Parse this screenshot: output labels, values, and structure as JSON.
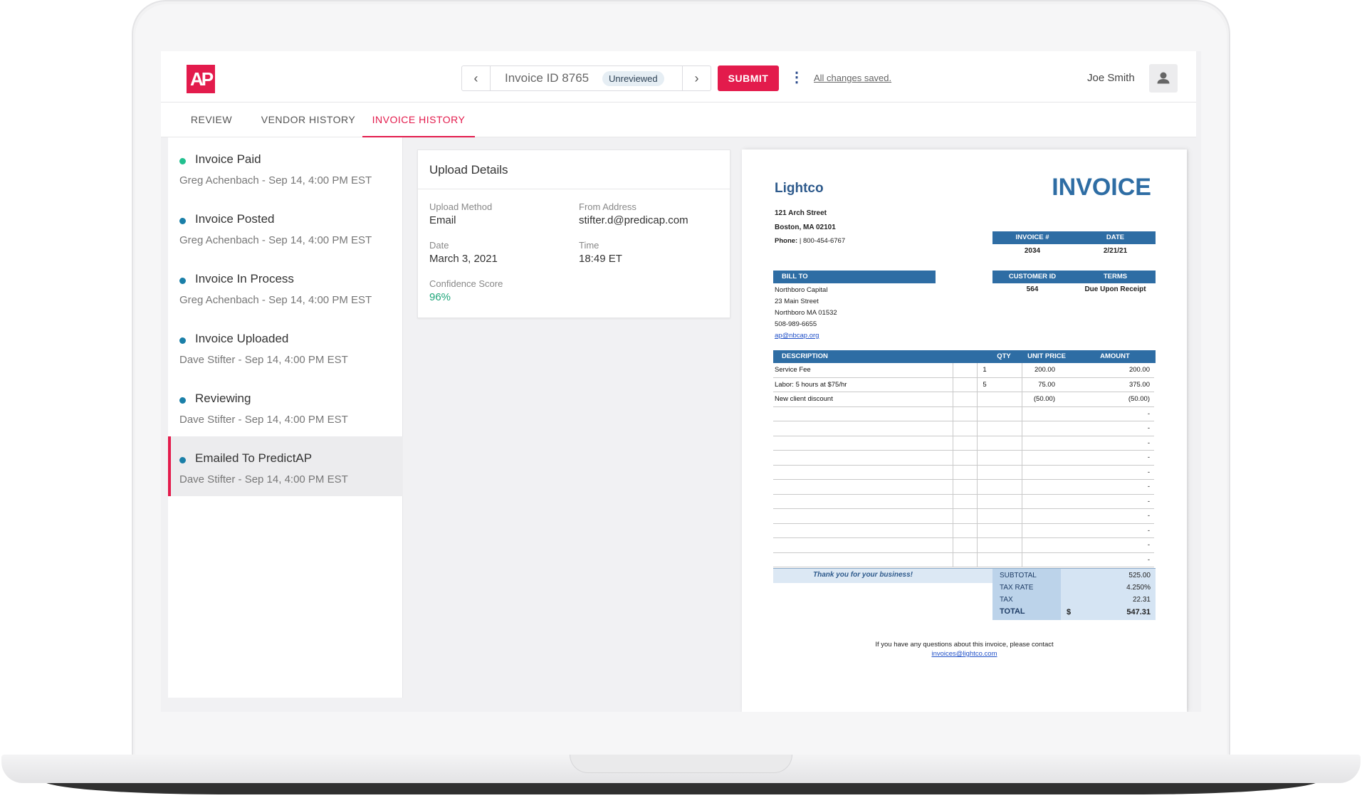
{
  "header": {
    "invoice_id": "Invoice ID 8765",
    "status": "Unreviewed",
    "submit_label": "SUBMIT",
    "saved_text": "All changes saved.",
    "user_name": "Joe Smith"
  },
  "tabs": [
    {
      "label": "REVIEW"
    },
    {
      "label": "VENDOR HISTORY"
    },
    {
      "label": "INVOICE HISTORY",
      "active": true
    }
  ],
  "timeline": [
    {
      "title": "Invoice Paid",
      "meta": "Greg Achenbach  -  Sep 14, 4:00 PM EST",
      "dot": "#22c08f"
    },
    {
      "title": "Invoice Posted",
      "meta": "Greg Achenbach  -  Sep 14, 4:00 PM EST",
      "dot": "#1a7fa8"
    },
    {
      "title": "Invoice In Process",
      "meta": "Greg Achenbach  -  Sep 14, 4:00 PM EST",
      "dot": "#1a7fa8"
    },
    {
      "title": "Invoice Uploaded",
      "meta": "Dave Stifter  -  Sep 14, 4:00 PM EST",
      "dot": "#1a7fa8"
    },
    {
      "title": "Reviewing",
      "meta": "Dave Stifter  -  Sep 14, 4:00 PM EST",
      "dot": "#1a7fa8"
    },
    {
      "title": "Emailed To PredictAP",
      "meta": "Dave Stifter  -  Sep 14, 4:00 PM EST",
      "dot": "#1a7fa8",
      "selected": true
    }
  ],
  "upload": {
    "title": "Upload Details",
    "method_label": "Upload Method",
    "method": "Email",
    "from_label": "From Address",
    "from": "stifter.d@predicap.com",
    "date_label": "Date",
    "date": "March 3, 2021",
    "time_label": "Time",
    "time": "18:49 ET",
    "confidence_label": "Confidence Score",
    "confidence": "96%",
    "confidence_color": "#1fa67a"
  },
  "invoice": {
    "company": "Lightco",
    "heading": "INVOICE",
    "address1": "121 Arch Street",
    "address2": "Boston, MA 02101",
    "phone_label": "Phone:",
    "phone": "| 800-454-6767",
    "invoice_no_label": "INVOICE #",
    "date_label": "DATE",
    "invoice_no": "2034",
    "date": "2/21/21",
    "bill_to_label": "BILL TO",
    "bill_to": [
      "Northboro Capital",
      "23 Main Street",
      "Northboro MA 01532",
      "508-989-6655"
    ],
    "bill_email": "ap@nbcap.org",
    "customer_id_label": "CUSTOMER ID",
    "terms_label": "TERMS",
    "customer_id": "564",
    "terms": "Due Upon Receipt",
    "columns": [
      "DESCRIPTION",
      "QTY",
      "UNIT PRICE",
      "AMOUNT"
    ],
    "rows": [
      {
        "desc": "Service Fee",
        "qty": "1",
        "unit": "200.00",
        "amount": "200.00"
      },
      {
        "desc": "Labor: 5 hours at $75/hr",
        "qty": "5",
        "unit": "75.00",
        "amount": "375.00"
      },
      {
        "desc": "New client discount",
        "qty": "",
        "unit": "(50.00)",
        "amount": "(50.00)"
      },
      {
        "desc": "",
        "qty": "",
        "unit": "",
        "amount": "-"
      },
      {
        "desc": "",
        "qty": "",
        "unit": "",
        "amount": "-"
      },
      {
        "desc": "",
        "qty": "",
        "unit": "",
        "amount": "-"
      },
      {
        "desc": "",
        "qty": "",
        "unit": "",
        "amount": "-"
      },
      {
        "desc": "",
        "qty": "",
        "unit": "",
        "amount": "-"
      },
      {
        "desc": "",
        "qty": "",
        "unit": "",
        "amount": "-"
      },
      {
        "desc": "",
        "qty": "",
        "unit": "",
        "amount": "-"
      },
      {
        "desc": "",
        "qty": "",
        "unit": "",
        "amount": "-"
      },
      {
        "desc": "",
        "qty": "",
        "unit": "",
        "amount": "-"
      },
      {
        "desc": "",
        "qty": "",
        "unit": "",
        "amount": "-"
      },
      {
        "desc": "",
        "qty": "",
        "unit": "",
        "amount": "-"
      }
    ],
    "thanks": "Thank you for your business!",
    "subtotal_label": "SUBTOTAL",
    "subtotal": "525.00",
    "tax_rate_label": "TAX RATE",
    "tax_rate": "4.250%",
    "tax_label": "TAX",
    "tax": "22.31",
    "total_label": "TOTAL",
    "currency": "$",
    "total": "547.31",
    "footer": "If you have any questions about this invoice, please contact",
    "footer_email": "invoices@lightco.com",
    "accent": "#2e6da4"
  },
  "colors": {
    "brand": "#e31b4c"
  }
}
